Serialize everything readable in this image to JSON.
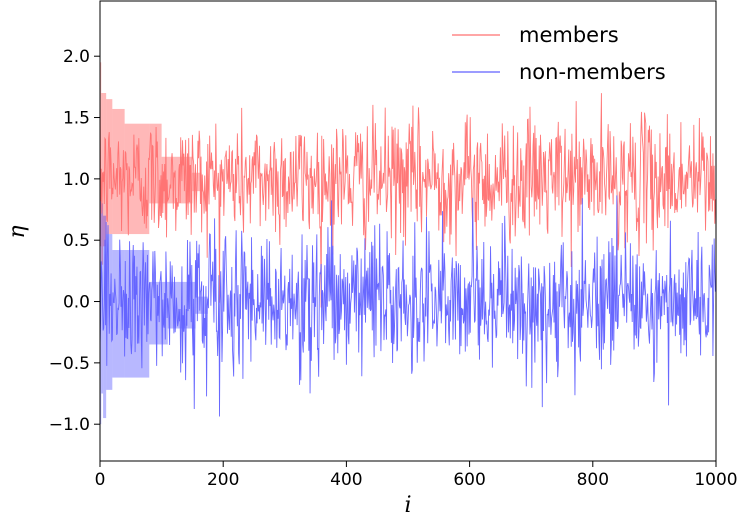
{
  "chart_data": {
    "type": "line",
    "title": "",
    "xlabel": "i",
    "ylabel": "η",
    "xlim": [
      0,
      1000
    ],
    "ylim": [
      -1.3,
      2.45
    ],
    "x_ticks": [
      0,
      200,
      400,
      600,
      800,
      1000
    ],
    "x_tick_labels": [
      "0",
      "200",
      "400",
      "600",
      "800",
      "1000"
    ],
    "y_ticks": [
      -1.0,
      -0.5,
      0.0,
      0.5,
      1.0,
      1.5,
      2.0
    ],
    "y_tick_labels": [
      "−1.0",
      "−0.5",
      "0.0",
      "0.5",
      "1.0",
      "1.5",
      "2.0"
    ],
    "grid": false,
    "legend_position": "top-right",
    "series": [
      {
        "name": "members",
        "color": "#ff7070",
        "fill_color": "#ff0000",
        "mean": 1.0,
        "std": 0.25,
        "n_points": 1000,
        "seed": 12345,
        "spread_band": [
          {
            "x0": 0,
            "x1": 2,
            "lo": 0.45,
            "hi": 1.95
          },
          {
            "x0": 2,
            "x1": 5,
            "lo": 0.3,
            "hi": 1.7
          },
          {
            "x0": 5,
            "x1": 10,
            "lo": 0.45,
            "hi": 1.7
          },
          {
            "x0": 10,
            "x1": 20,
            "lo": 0.55,
            "hi": 1.65
          },
          {
            "x0": 20,
            "x1": 40,
            "lo": 0.55,
            "hi": 1.57
          },
          {
            "x0": 40,
            "x1": 80,
            "lo": 0.55,
            "hi": 1.45
          },
          {
            "x0": 80,
            "x1": 100,
            "lo": 0.8,
            "hi": 1.45
          },
          {
            "x0": 100,
            "x1": 150,
            "lo": 0.8,
            "hi": 1.18
          },
          {
            "x0": 150,
            "x1": 165,
            "lo": 0.9,
            "hi": 1.05
          }
        ]
      },
      {
        "name": "non-members",
        "color": "#6060ff",
        "fill_color": "#0000ff",
        "mean": 0.0,
        "std": 0.28,
        "n_points": 1000,
        "seed": 54321,
        "spread_band": [
          {
            "x0": 0,
            "x1": 2,
            "lo": -1.0,
            "hi": 0.85
          },
          {
            "x0": 2,
            "x1": 5,
            "lo": -0.75,
            "hi": 0.8
          },
          {
            "x0": 5,
            "x1": 10,
            "lo": -0.95,
            "hi": 0.7
          },
          {
            "x0": 10,
            "x1": 20,
            "lo": -0.72,
            "hi": 0.55
          },
          {
            "x0": 20,
            "x1": 40,
            "lo": -0.62,
            "hi": 0.42
          },
          {
            "x0": 40,
            "x1": 80,
            "lo": -0.62,
            "hi": 0.42
          },
          {
            "x0": 80,
            "x1": 110,
            "lo": -0.35,
            "hi": 0.16
          },
          {
            "x0": 110,
            "x1": 155,
            "lo": -0.22,
            "hi": 0.16
          },
          {
            "x0": 155,
            "x1": 175,
            "lo": -0.1,
            "hi": 0.04
          }
        ]
      }
    ]
  }
}
